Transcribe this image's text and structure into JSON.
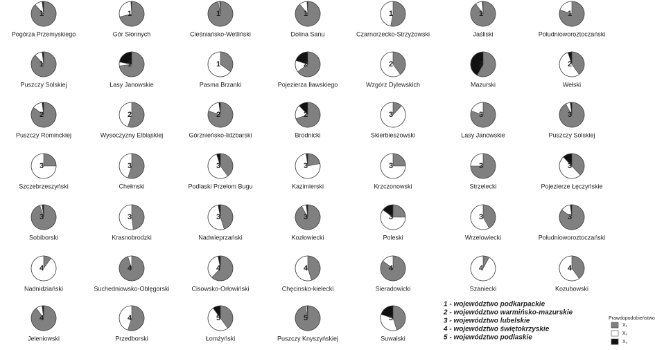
{
  "chart_data": [
    {
      "type": "pie",
      "title": "Pogórza Przemyskiego",
      "group": 1,
      "values": [
        88,
        10,
        2
      ]
    },
    {
      "type": "pie",
      "title": "Gór Słonnych",
      "group": 1,
      "values": [
        71,
        28,
        1
      ]
    },
    {
      "type": "pie",
      "title": "Cieśniańsko-Wetliński",
      "group": 1,
      "values": [
        97,
        2,
        1
      ]
    },
    {
      "type": "pie",
      "title": "Dolina Sanu",
      "group": 1,
      "values": [
        89,
        10,
        1
      ]
    },
    {
      "type": "pie",
      "title": "Czarnorzecko-Strzyżowski",
      "group": 1,
      "values": [
        53,
        47,
        0
      ]
    },
    {
      "type": "pie",
      "title": "Jaśliski",
      "group": 1,
      "values": [
        90,
        9,
        1
      ]
    },
    {
      "type": "pie",
      "title": "Południoworoztoczański",
      "group": 1,
      "values": [
        80,
        20,
        0
      ]
    },
    {
      "type": "pie",
      "title": "Puszczy Solskiej",
      "group": 1,
      "values": [
        88,
        10,
        2
      ]
    },
    {
      "type": "pie",
      "title": "Lasy Janowskie",
      "group": 1,
      "values": [
        73,
        5,
        22
      ]
    },
    {
      "type": "pie",
      "title": "Pasma Brzanki",
      "group": 1,
      "values": [
        35,
        65,
        0
      ]
    },
    {
      "type": "pie",
      "title": "Pojezierza Iławskiego",
      "group": 2,
      "values": [
        65,
        15,
        20
      ]
    },
    {
      "type": "pie",
      "title": "Wzgórz Dylewskich",
      "group": 2,
      "values": [
        40,
        60,
        0
      ]
    },
    {
      "type": "pie",
      "title": "Mazurski",
      "group": 2,
      "values": [
        58,
        0,
        42
      ]
    },
    {
      "type": "pie",
      "title": "Wełski",
      "group": 2,
      "values": [
        40,
        55,
        5
      ]
    },
    {
      "type": "pie",
      "title": "Puszczy Rominckiej",
      "group": 2,
      "values": [
        85,
        13,
        2
      ]
    },
    {
      "type": "pie",
      "title": "Wysoczyzny Elbląskiej",
      "group": 2,
      "values": [
        55,
        45,
        0
      ]
    },
    {
      "type": "pie",
      "title": "Górznieńsko-lidzbarski",
      "group": 2,
      "values": [
        80,
        18,
        2
      ]
    },
    {
      "type": "pie",
      "title": "Brodnicki",
      "group": 2,
      "values": [
        70,
        18,
        12
      ]
    },
    {
      "type": "pie",
      "title": "Skierbieszowski",
      "group": 3,
      "values": [
        12,
        88,
        0
      ]
    },
    {
      "type": "pie",
      "title": "Lasy Janowskie",
      "group": 3,
      "values": [
        80,
        20,
        0
      ]
    },
    {
      "type": "pie",
      "title": "Puszczy Solskiej",
      "group": 3,
      "values": [
        92,
        6,
        2
      ]
    },
    {
      "type": "pie",
      "title": "Szczebrzeszyński",
      "group": 3,
      "values": [
        25,
        75,
        0
      ]
    },
    {
      "type": "pie",
      "title": "Chełmski",
      "group": 3,
      "values": [
        55,
        45,
        0
      ]
    },
    {
      "type": "pie",
      "title": "Podlaski Przełom Bugu",
      "group": 3,
      "values": [
        40,
        55,
        5
      ]
    },
    {
      "type": "pie",
      "title": "Kazimierski",
      "group": 3,
      "values": [
        22,
        76,
        2
      ]
    },
    {
      "type": "pie",
      "title": "Krzczonowski",
      "group": 3,
      "values": [
        25,
        75,
        0
      ]
    },
    {
      "type": "pie",
      "title": "Strzelecki",
      "group": 3,
      "values": [
        75,
        25,
        0
      ]
    },
    {
      "type": "pie",
      "title": "Pojezierze Łęczyńskie",
      "group": 3,
      "values": [
        38,
        50,
        12
      ]
    },
    {
      "type": "pie",
      "title": "Sobiborski",
      "group": 3,
      "values": [
        95,
        3,
        2
      ]
    },
    {
      "type": "pie",
      "title": "Krasnobrodzki",
      "group": 3,
      "values": [
        48,
        52,
        0
      ]
    },
    {
      "type": "pie",
      "title": "Nadwieprzański",
      "group": 3,
      "values": [
        45,
        52,
        3
      ]
    },
    {
      "type": "pie",
      "title": "Kozłowiecki",
      "group": 3,
      "values": [
        92,
        6,
        2
      ]
    },
    {
      "type": "pie",
      "title": "Poleski",
      "group": 3,
      "values": [
        25,
        60,
        15
      ]
    },
    {
      "type": "pie",
      "title": "Wrzelowiecki",
      "group": 3,
      "values": [
        42,
        58,
        0
      ]
    },
    {
      "type": "pie",
      "title": "Południoworoztoczański",
      "group": 3,
      "values": [
        85,
        13,
        2
      ]
    },
    {
      "type": "pie",
      "title": "Nadnidziański",
      "group": 4,
      "values": [
        10,
        90,
        0
      ]
    },
    {
      "type": "pie",
      "title": "Suchedniowsko-Oblęgorski",
      "group": 4,
      "values": [
        95,
        5,
        0
      ]
    },
    {
      "type": "pie",
      "title": "Cisowsko-Orłowiński",
      "group": 4,
      "values": [
        62,
        35,
        3
      ]
    },
    {
      "type": "pie",
      "title": "Chęcinsko-kielecki",
      "group": 4,
      "values": [
        45,
        55,
        0
      ]
    },
    {
      "type": "pie",
      "title": "Sieradowicki",
      "group": 4,
      "values": [
        85,
        15,
        0
      ]
    },
    {
      "type": "pie",
      "title": "Szaniecki",
      "group": 4,
      "values": [
        8,
        92,
        0
      ]
    },
    {
      "type": "pie",
      "title": "Kozubowski",
      "group": 4,
      "values": [
        40,
        60,
        0
      ]
    },
    {
      "type": "pie",
      "title": "Jeleniowski",
      "group": 4,
      "values": [
        90,
        8,
        2
      ]
    },
    {
      "type": "pie",
      "title": "Przedborski",
      "group": 4,
      "values": [
        55,
        45,
        0
      ]
    },
    {
      "type": "pie",
      "title": "Łomżyński",
      "group": 5,
      "values": [
        40,
        50,
        10
      ]
    },
    {
      "type": "pie",
      "title": "Puszczy Knyszyńskiej",
      "group": 5,
      "values": [
        97,
        2,
        1
      ]
    },
    {
      "type": "pie",
      "title": "Suwalski",
      "group": 5,
      "values": [
        45,
        35,
        20
      ]
    }
  ],
  "regions": [
    "1 - województwo podkarpackie",
    "2 - województwo warmińsko-mazurskie",
    "3 - województwo lubelskie",
    "4 - województwo świętokrzyskie",
    "5 - województwo podlaskie"
  ],
  "legend": {
    "title": "Prawdopodobieństwo:",
    "items": [
      {
        "name": "X₁",
        "color": "#808080"
      },
      {
        "name": "X₂",
        "color": "#ffffff"
      },
      {
        "name": "X₃",
        "color": "#111111"
      }
    ]
  }
}
